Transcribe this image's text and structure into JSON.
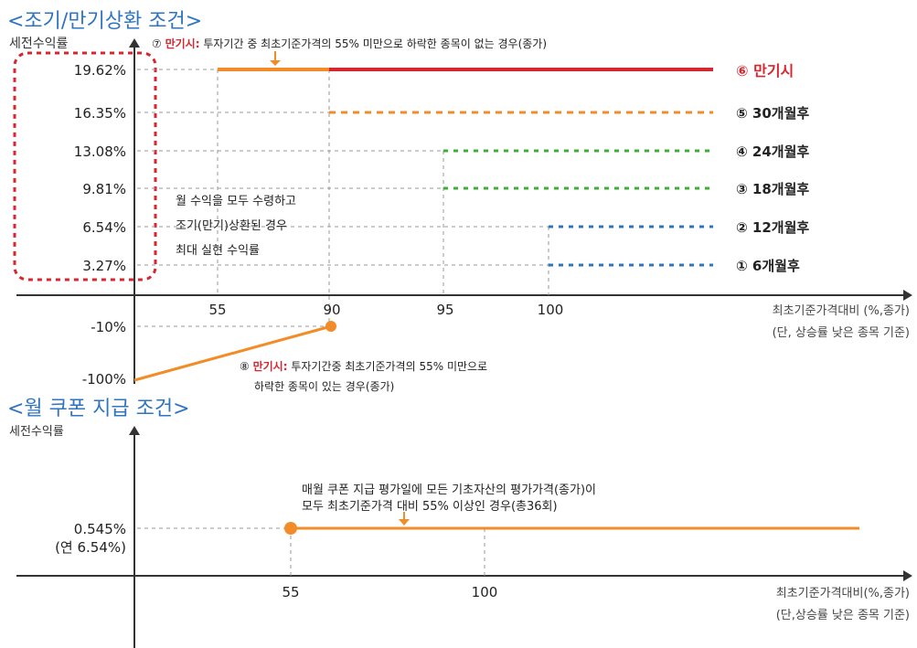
{
  "colors": {
    "title_blue": "#2f74c0",
    "red": "#d8262e",
    "orange": "#f28c28",
    "green": "#3cb035",
    "blue": "#2f74c0",
    "axis": "#333333",
    "grid": "#999999"
  },
  "chart_data": [
    {
      "type": "line",
      "title": "<조기/만기상환 조건>",
      "ylabel": "세전수익률",
      "xlabel": "최초기준가격대비 (%,종가)",
      "xlabel_note": "(단, 상승률 낮은 종목 기준)",
      "x_ticks": [
        "55",
        "90",
        "95",
        "100"
      ],
      "y_tick_labels": [
        "19.62%",
        "16.35%",
        "13.08%",
        "9.81%",
        "6.54%",
        "3.27%",
        "-10%",
        "-100%"
      ],
      "series": [
        {
          "name": "⑥ 만기시",
          "y": 19.62,
          "x_from": 90,
          "style": "solid",
          "color": "#d8262e"
        },
        {
          "name": "⑤ 30개월후",
          "y": 16.35,
          "x_from": 90,
          "style": "dashed",
          "color": "#f28c28"
        },
        {
          "name": "④ 24개월후",
          "y": 13.08,
          "x_from": 95,
          "style": "dashed",
          "color": "#3cb035"
        },
        {
          "name": "③ 18개월후",
          "y": 9.81,
          "x_from": 95,
          "style": "dashed",
          "color": "#3cb035"
        },
        {
          "name": "② 12개월후",
          "y": 6.54,
          "x_from": 100,
          "style": "dashed",
          "color": "#2f74c0"
        },
        {
          "name": "① 6개월후",
          "y": 3.27,
          "x_from": 100,
          "style": "dashed",
          "color": "#2f74c0"
        }
      ],
      "maturity_segment": {
        "y": 19.62,
        "x": [
          55,
          90
        ],
        "color": "#f28c28"
      },
      "loss_line": {
        "points": [
          {
            "x": 0,
            "y": -100
          },
          {
            "x": 90,
            "y": -10
          }
        ],
        "color": "#f28c28"
      },
      "annotation_7": {
        "prefix": "⑦",
        "emph": "만기시:",
        "text": " 투자기간 중 최초기준가격의 55% 미만으로 하락한 종목이 없는 경우(종가)"
      },
      "annotation_8": {
        "prefix": "⑧",
        "emph": "만기시:",
        "text": " 투자기간중 최초기준가격의 55% 미만으로",
        "text2": "하락한 종목이 있는 경우(종가)"
      },
      "note_lines": [
        "월 수익을 모두 수령하고",
        "조기(만기)상환된 경우",
        "최대 실현 수익률"
      ]
    },
    {
      "type": "line",
      "title": "<월 쿠폰 지급 조건>",
      "ylabel": "세전수익률",
      "xlabel": "최초기준가격대비(%,종가)",
      "xlabel_note": "(단,상승률 낮은 종목 기준)",
      "x_ticks": [
        "55",
        "100"
      ],
      "y_tick_label": "0.545%",
      "y_tick_sub": "(연 6.54%)",
      "series": [
        {
          "y": 0.545,
          "x_from": 55,
          "style": "solid",
          "color": "#f28c28"
        }
      ],
      "annotation": [
        "매월 쿠폰 지급 평가일에 모든 기초자산의 평가가격(종가)이",
        "모두 최초기준가격 대비 55% 이상인 경우(총36회)"
      ]
    }
  ]
}
